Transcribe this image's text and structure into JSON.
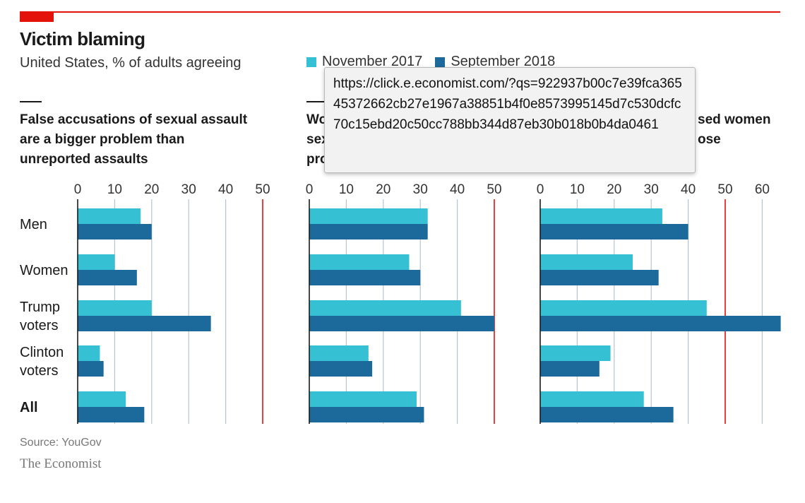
{
  "header": {
    "title": "Victim blaming",
    "subtitle": "United States, % of adults agreeing"
  },
  "legend": [
    {
      "label": "November 2017",
      "color": "#36c0d3"
    },
    {
      "label": "September 2018",
      "color": "#1c6a9c"
    }
  ],
  "panels": [
    {
      "title_lines": [
        "False accusations of sexual assault",
        "are a bigger problem than",
        "unreported assaults"
      ]
    },
    {
      "title_lines": [
        "Wo",
        "sex",
        "pro"
      ]
    },
    {
      "title_lines": [
        "sed women",
        "ose"
      ]
    }
  ],
  "chart_data": [
    {
      "type": "bar",
      "title": "False accusations of sexual assault are a bigger problem than unreported assaults",
      "orientation": "horizontal",
      "categories": [
        "Men",
        "Women",
        "Trump voters",
        "Clinton voters",
        "All"
      ],
      "series": [
        {
          "name": "November 2017",
          "values": [
            17,
            10,
            20,
            6,
            13
          ]
        },
        {
          "name": "September 2018",
          "values": [
            20,
            16,
            36,
            7,
            18
          ]
        }
      ],
      "xlim": [
        0,
        50
      ],
      "ticks": [
        0,
        10,
        20,
        30,
        40,
        50
      ],
      "reference_line": 50,
      "grid": true
    },
    {
      "type": "bar",
      "title": "",
      "orientation": "horizontal",
      "categories": [
        "Men",
        "Women",
        "Trump voters",
        "Clinton voters",
        "All"
      ],
      "series": [
        {
          "name": "November 2017",
          "values": [
            32,
            27,
            41,
            16,
            29
          ]
        },
        {
          "name": "September 2018",
          "values": [
            32,
            30,
            50,
            17,
            31
          ]
        }
      ],
      "xlim": [
        0,
        50
      ],
      "ticks": [
        0,
        10,
        20,
        30,
        40,
        50
      ],
      "reference_line": 50,
      "grid": true
    },
    {
      "type": "bar",
      "title": "",
      "orientation": "horizontal",
      "categories": [
        "Men",
        "Women",
        "Trump voters",
        "Clinton voters",
        "All"
      ],
      "series": [
        {
          "name": "November 2017",
          "values": [
            33,
            25,
            45,
            19,
            28
          ]
        },
        {
          "name": "September 2018",
          "values": [
            40,
            32,
            65,
            16,
            36
          ]
        }
      ],
      "xlim": [
        0,
        65
      ],
      "ticks": [
        0,
        10,
        20,
        30,
        40,
        50,
        60
      ],
      "reference_line": 50,
      "grid": true
    }
  ],
  "row_labels": [
    {
      "lines": [
        "Men"
      ],
      "bold": false
    },
    {
      "lines": [
        "Women"
      ],
      "bold": false
    },
    {
      "lines": [
        "Trump",
        "voters"
      ],
      "bold": false
    },
    {
      "lines": [
        "Clinton",
        "voters"
      ],
      "bold": false
    },
    {
      "lines": [
        "All"
      ],
      "bold": true
    }
  ],
  "footer": {
    "source": "Source: YouGov",
    "brand": "The Economist"
  },
  "tooltip": {
    "url": "https://click.e.economist.com/?qs=922937b00c7e39fca36545372662cb27e1967a38851b4f0e8573995145d7c530dcfc70c15ebd20c50cc788bb344d87eb30b018b0b4da0461"
  },
  "colors": {
    "accent_red": "#e3120b",
    "grid": "#b4c4d2",
    "series_2017": "#36c0d3",
    "series_2018": "#1c6a9c"
  }
}
